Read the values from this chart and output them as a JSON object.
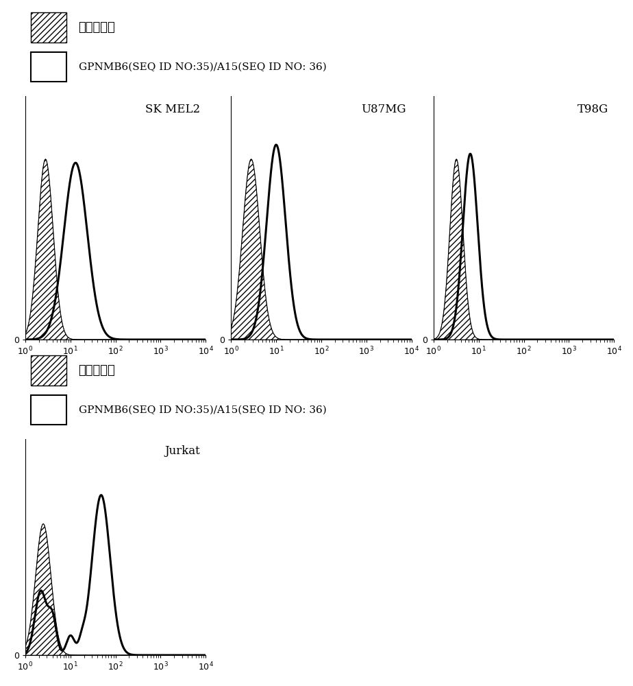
{
  "legend1_label1": "同種型対照",
  "legend1_label2": "GPNMB6(SEQ ID NO:35)/A15(SEQ ID NO: 36)",
  "legend2_label1": "同種型対照",
  "legend2_label2": "GPNMB6(SEQ ID NO:35)/A15(SEQ ID NO: 36)",
  "panels_top": [
    "SK MEL2",
    "U87MG",
    "T98G"
  ],
  "panel_bottom": "Jurkat",
  "background_color": "#ffffff"
}
